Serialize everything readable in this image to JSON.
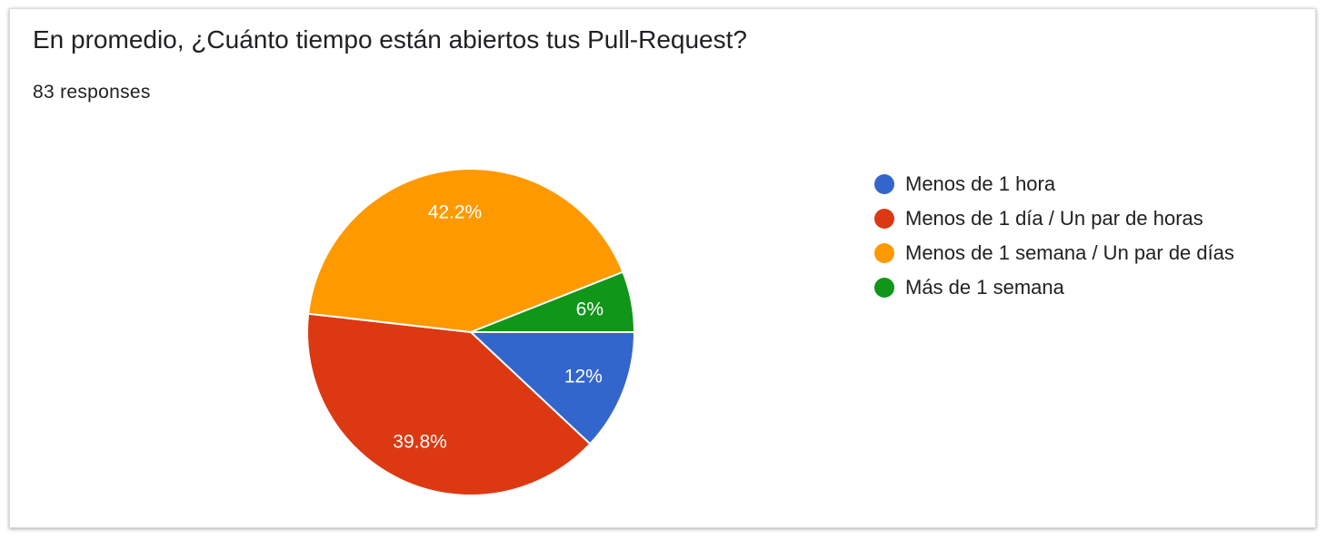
{
  "card": {
    "title": "En promedio, ¿Cuánto tiempo están abiertos tus Pull-Request?",
    "responses": "83 responses"
  },
  "chart_data": {
    "type": "pie",
    "title": "En promedio, ¿Cuánto tiempo están abiertos tus Pull-Request?",
    "categories": [
      "Menos de 1 hora",
      "Menos de 1 día / Un par de horas",
      "Menos de 1 semana / Un par de días",
      "Más de 1 semana"
    ],
    "values": [
      12,
      39.8,
      42.2,
      6
    ],
    "labels": [
      "12%",
      "39.8%",
      "42.2%",
      "6%"
    ],
    "colors": [
      "#3366cc",
      "#dc3912",
      "#ff9900",
      "#109618"
    ],
    "legend_position": "right"
  }
}
